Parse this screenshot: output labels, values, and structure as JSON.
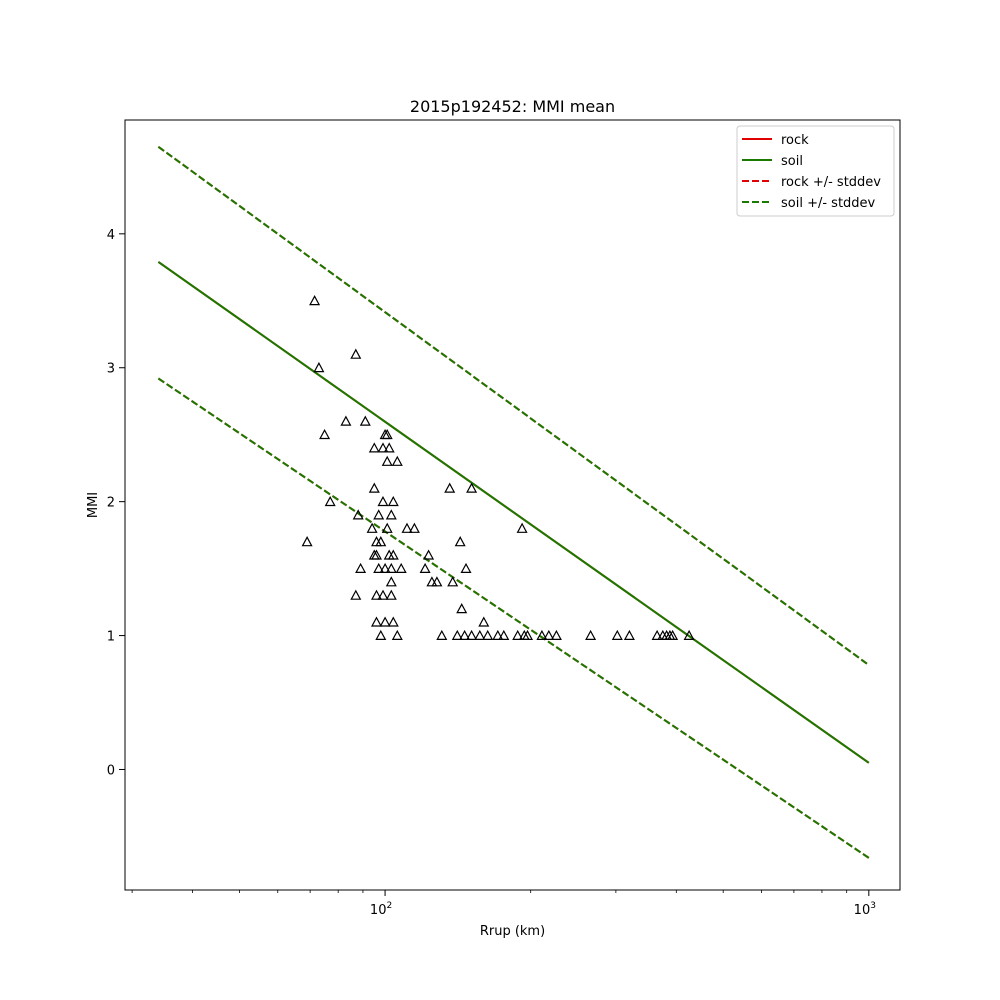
{
  "chart_data": {
    "type": "scatter",
    "title": "2015p192452: MMI mean",
    "xlabel": "Rrup (km)",
    "ylabel": "MMI",
    "xscale": "log",
    "xlim": [
      29,
      1160
    ],
    "ylim": [
      -0.9,
      4.85
    ],
    "xticks": [
      {
        "value": 100,
        "base": "10",
        "exp": "2"
      },
      {
        "value": 1000,
        "base": "10",
        "exp": "3"
      }
    ],
    "yticks": [
      0,
      1,
      2,
      3,
      4
    ],
    "grid": false,
    "legend": {
      "position": "top-right",
      "entries": [
        {
          "label": "rock",
          "color": "#e00000",
          "style": "solid"
        },
        {
          "label": "soil",
          "color": "#1a7a00",
          "style": "solid"
        },
        {
          "label": "rock +/- stddev",
          "color": "#e00000",
          "style": "dashed"
        },
        {
          "label": "soil +/- stddev",
          "color": "#1a7a00",
          "style": "dashed"
        }
      ]
    },
    "lines": [
      {
        "name": "rock",
        "color": "#e00000",
        "style": "solid",
        "x": [
          34,
          1000
        ],
        "y": [
          3.79,
          0.05
        ]
      },
      {
        "name": "soil",
        "color": "#1a7a00",
        "style": "solid",
        "x": [
          34,
          1000
        ],
        "y": [
          3.79,
          0.05
        ]
      },
      {
        "name": "rock +/- stddev",
        "color": "#e00000",
        "style": "dashed",
        "x": [
          34,
          1000
        ],
        "y": [
          4.65,
          0.78
        ]
      },
      {
        "name": "rock +/- stddev",
        "color": "#e00000",
        "style": "dashed",
        "x": [
          34,
          1000
        ],
        "y": [
          2.92,
          -0.66
        ]
      },
      {
        "name": "soil +/- stddev",
        "color": "#1a7a00",
        "style": "dashed",
        "x": [
          34,
          1000
        ],
        "y": [
          4.65,
          0.78
        ]
      },
      {
        "name": "soil +/- stddev",
        "color": "#1a7a00",
        "style": "dashed",
        "x": [
          34,
          1000
        ],
        "y": [
          2.92,
          -0.66
        ]
      }
    ],
    "points": {
      "marker": "triangle",
      "color": "#000000",
      "x": [
        71.5,
        73,
        87,
        75,
        83,
        91,
        100,
        101,
        95,
        99,
        102,
        101,
        106,
        77,
        95,
        136,
        151,
        192,
        99,
        104,
        88,
        94,
        97,
        101,
        103,
        111,
        115,
        69,
        96,
        98,
        143,
        96,
        102,
        104,
        123,
        95,
        89,
        97,
        100,
        103,
        108,
        121,
        125,
        147,
        103,
        128,
        138,
        144,
        87,
        96,
        99,
        103,
        96,
        100,
        104,
        160,
        98,
        106,
        131,
        141,
        146,
        151,
        157,
        163,
        171,
        176,
        188,
        194,
        197,
        211,
        218,
        226,
        266,
        302,
        320,
        365,
        375,
        382,
        388,
        393,
        425
      ],
      "y": [
        3.5,
        3.0,
        3.1,
        2.5,
        2.6,
        2.6,
        2.5,
        2.5,
        2.4,
        2.4,
        2.4,
        2.3,
        2.3,
        2.0,
        2.1,
        2.1,
        2.1,
        1.8,
        2.0,
        2.0,
        1.9,
        1.8,
        1.9,
        1.8,
        1.9,
        1.8,
        1.8,
        1.7,
        1.7,
        1.7,
        1.7,
        1.6,
        1.6,
        1.6,
        1.6,
        1.6,
        1.5,
        1.5,
        1.5,
        1.5,
        1.5,
        1.5,
        1.4,
        1.5,
        1.4,
        1.4,
        1.4,
        1.2,
        1.3,
        1.3,
        1.3,
        1.3,
        1.1,
        1.1,
        1.1,
        1.1,
        1.0,
        1.0,
        1.0,
        1.0,
        1.0,
        1.0,
        1.0,
        1.0,
        1.0,
        1.0,
        1.0,
        1.0,
        1.0,
        1.0,
        1.0,
        1.0,
        1.0,
        1.0,
        1.0,
        1.0,
        1.0,
        1.0,
        1.0,
        1.0,
        1.0
      ]
    }
  }
}
